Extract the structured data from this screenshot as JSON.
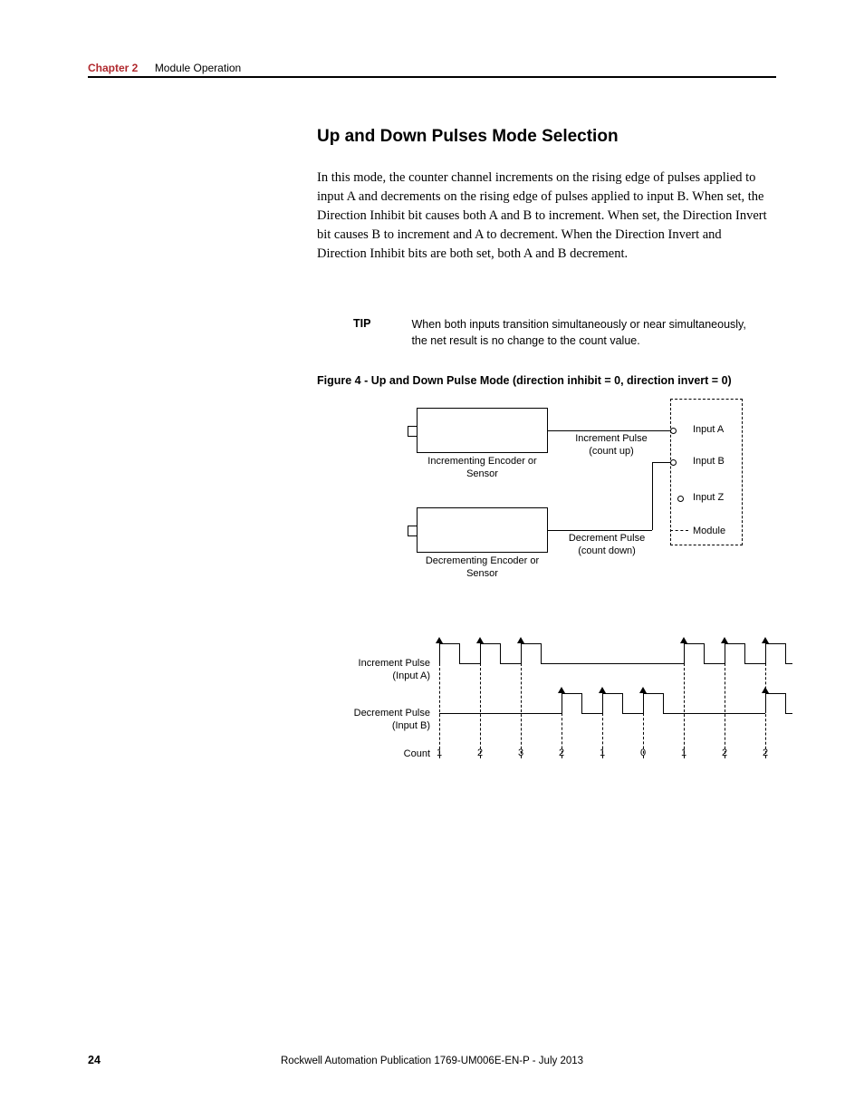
{
  "header": {
    "chapter_label": "Chapter 2",
    "chapter_title": "Module Operation"
  },
  "section": {
    "heading": "Up and Down Pulses Mode Selection",
    "body": "In this mode, the counter channel increments on the rising edge of pulses applied to input A and decrements on the rising edge of pulses applied to input B. When set, the Direction Inhibit bit causes both A and B to increment. When set, the Direction Invert bit causes B to increment and A to decrement. When the Direction Invert and Direction Inhibit bits are both set, both A and B decrement."
  },
  "tip": {
    "label": "TIP",
    "text": "When both inputs transition simultaneously or near simultaneously, the net result is no change to the count value."
  },
  "figure": {
    "caption": "Figure 4 - Up and Down Pulse Mode (direction inhibit = 0, direction invert = 0)",
    "block": {
      "incrementing_encoder": "Incrementing Encoder or Sensor",
      "decrementing_encoder": "Decrementing Encoder or Sensor",
      "increment_pulse": "Increment Pulse (count up)",
      "decrement_pulse": "Decrement Pulse (count down)",
      "input_a": "Input A",
      "input_b": "Input B",
      "input_z": "Input Z",
      "module": "Module",
      "colors": {
        "line": "#000000",
        "background": "#ffffff"
      }
    },
    "timing": {
      "increment_label": "Increment Pulse (Input A)",
      "decrement_label": "Decrement Pulse (Input B)",
      "count_label": "Count",
      "counts": [
        "1",
        "2",
        "3",
        "2",
        "1",
        "0",
        "1",
        "2",
        "2"
      ],
      "increment_edges": [
        0,
        1,
        2,
        6,
        7,
        8
      ],
      "decrement_edges": [
        3,
        4,
        5,
        8
      ],
      "pulse_width": 22,
      "pulse_height": 22,
      "spacing": 45,
      "colors": {
        "line": "#000000",
        "dashed": "#000000"
      }
    }
  },
  "footer": {
    "page": "24",
    "publication": "Rockwell Automation Publication 1769-UM006E-EN-P - July 2013"
  }
}
